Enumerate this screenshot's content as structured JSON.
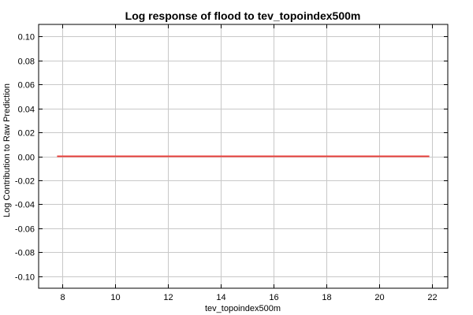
{
  "chart_data": {
    "type": "line",
    "title": "Log response of flood to tev_topoindex500m",
    "xlabel": "tev_topoindex500m",
    "ylabel": "Log Contribution to Raw Prediction",
    "xlim": [
      7.1,
      22.6
    ],
    "ylim": [
      -0.11,
      0.11
    ],
    "xticks": [
      8,
      10,
      12,
      14,
      16,
      18,
      20,
      22
    ],
    "yticks": [
      0.1,
      0.08,
      0.06,
      0.04,
      0.02,
      0.0,
      -0.02,
      -0.04,
      -0.06,
      -0.08,
      -0.1
    ],
    "xtick_labels": [
      "8",
      "10",
      "12",
      "14",
      "16",
      "18",
      "20",
      "22"
    ],
    "ytick_labels": [
      "0.10",
      "0.08",
      "0.06",
      "0.04",
      "0.02",
      "0.00",
      "-0.02",
      "-0.04",
      "-0.06",
      "-0.08",
      "-0.10"
    ],
    "grid": true,
    "series": [
      {
        "color": "#e8413c",
        "x": [
          7.8,
          21.9
        ],
        "y": [
          0.0,
          0.0
        ]
      }
    ]
  }
}
